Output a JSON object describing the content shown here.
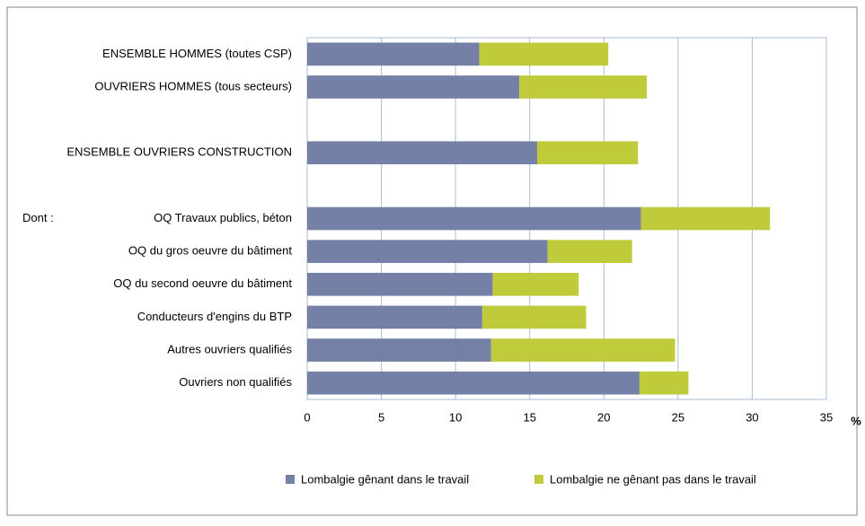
{
  "chart_data": {
    "type": "stacked_barh",
    "categories": [
      "ENSEMBLE HOMMES  (toutes CSP)",
      "OUVRIERS HOMMES  (tous secteurs)",
      null,
      "ENSEMBLE OUVRIERS CONSTRUCTION",
      null,
      "OQ Travaux publics, béton",
      "OQ du gros oeuvre du bâtiment",
      "OQ du second oeuvre du bâtiment",
      "Conducteurs d'engins du BTP",
      "Autres ouvriers qualifiés",
      "Ouvriers non qualifiés"
    ],
    "annotations": [
      "Dont :"
    ],
    "xlabel": "%",
    "series": [
      {
        "name": "Lombalgie gênant dans le travail",
        "color": "#7480a6",
        "values": [
          11.6,
          14.3,
          null,
          15.5,
          null,
          22.5,
          16.2,
          12.5,
          11.8,
          12.4,
          22.4
        ]
      },
      {
        "name": "Lombalgie ne gênant pas dans le travail",
        "color": "#bfcb3a",
        "values": [
          8.7,
          8.6,
          null,
          6.8,
          null,
          8.7,
          5.7,
          5.8,
          7.0,
          12.4,
          3.3
        ]
      }
    ],
    "xlim": [
      0,
      35
    ],
    "xticks": [
      0,
      5,
      10,
      15,
      20,
      25,
      30,
      35
    ],
    "grid": true,
    "legend": "bottom"
  }
}
